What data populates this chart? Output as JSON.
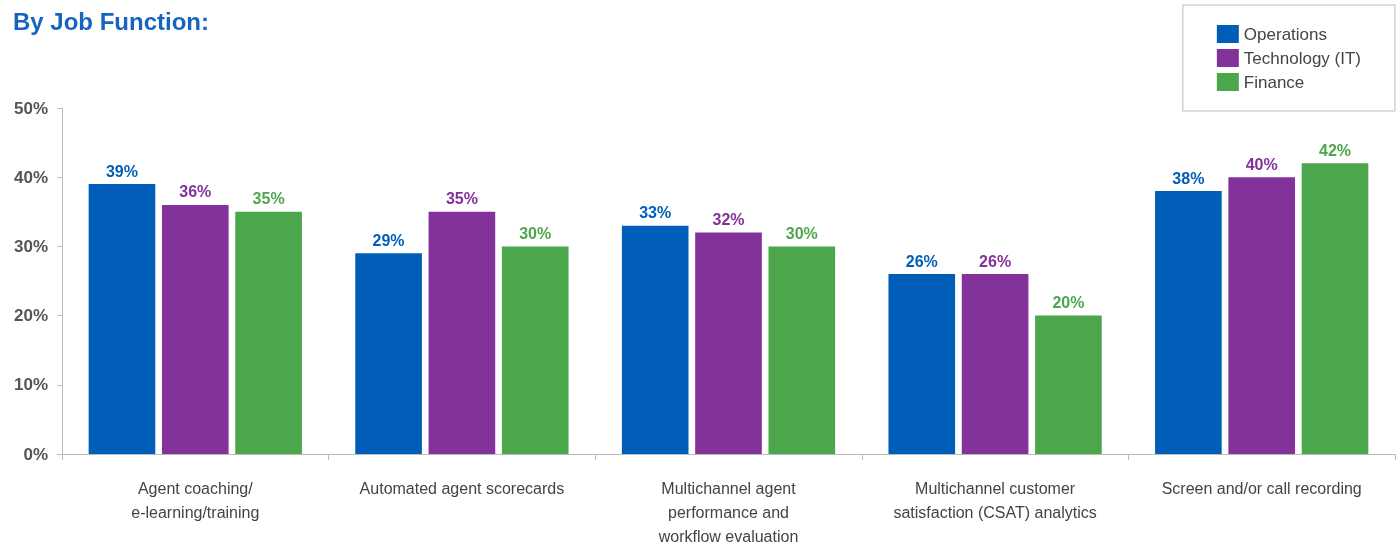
{
  "chart_data": {
    "type": "bar",
    "title": "By Job Function:",
    "categories": [
      "Agent coaching/\ne-learning/training",
      "Automated agent scorecards",
      "Multichannel agent\nperformance and\nworkflow evaluation",
      "Multichannel customer\nsatisfaction (CSAT) analytics",
      "Screen and/or call recording"
    ],
    "series": [
      {
        "name": "Operations",
        "color": "#005eb8",
        "values": [
          39,
          29,
          33,
          26,
          38
        ],
        "value_labels": [
          "39%",
          "29%",
          "33%",
          "26%",
          "38%"
        ]
      },
      {
        "name": "Technology (IT)",
        "color": "#84329b",
        "values": [
          36,
          35,
          32,
          26,
          40
        ],
        "value_labels": [
          "36%",
          "35%",
          "32%",
          "26%",
          "40%"
        ]
      },
      {
        "name": "Finance",
        "color": "#4ca64c",
        "values": [
          35,
          30,
          30,
          20,
          42
        ],
        "value_labels": [
          "35%",
          "30%",
          "30%",
          "20%",
          "42%"
        ]
      }
    ],
    "ylim": [
      0,
      50
    ],
    "yticks": [
      {
        "value": 0,
        "label": "0%"
      },
      {
        "value": 10,
        "label": "10%"
      },
      {
        "value": 20,
        "label": "20%"
      },
      {
        "value": 30,
        "label": "30%"
      },
      {
        "value": 40,
        "label": "40%"
      },
      {
        "value": 50,
        "label": "50%"
      }
    ],
    "grid": false,
    "legend": "top right"
  }
}
